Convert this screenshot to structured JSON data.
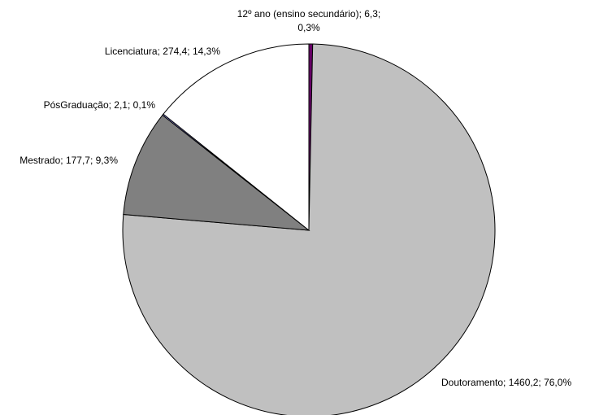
{
  "chart_data": {
    "type": "pie",
    "title": "",
    "legend": "none",
    "slices": [
      {
        "category": "12º ano (ensino secundário)",
        "value": 6.3,
        "percent": 0.3,
        "value_text": "6,3",
        "percent_text": "0,3%",
        "color": "#660066"
      },
      {
        "category": "Doutoramento",
        "value": 1460.2,
        "percent": 76.0,
        "value_text": "1460,2",
        "percent_text": "76,0%",
        "color": "#c0c0c0"
      },
      {
        "category": "Mestrado",
        "value": 177.7,
        "percent": 9.3,
        "value_text": "177,7",
        "percent_text": "9,3%",
        "color": "#808080"
      },
      {
        "category": "PósGraduação",
        "value": 2.1,
        "percent": 0.1,
        "value_text": "2,1",
        "percent_text": "0,1%",
        "color": "#9999ff"
      },
      {
        "category": "Licenciatura",
        "value": 274.4,
        "percent": 14.3,
        "value_text": "274,4",
        "percent_text": "14,3%",
        "color": "#ffffff"
      }
    ]
  }
}
